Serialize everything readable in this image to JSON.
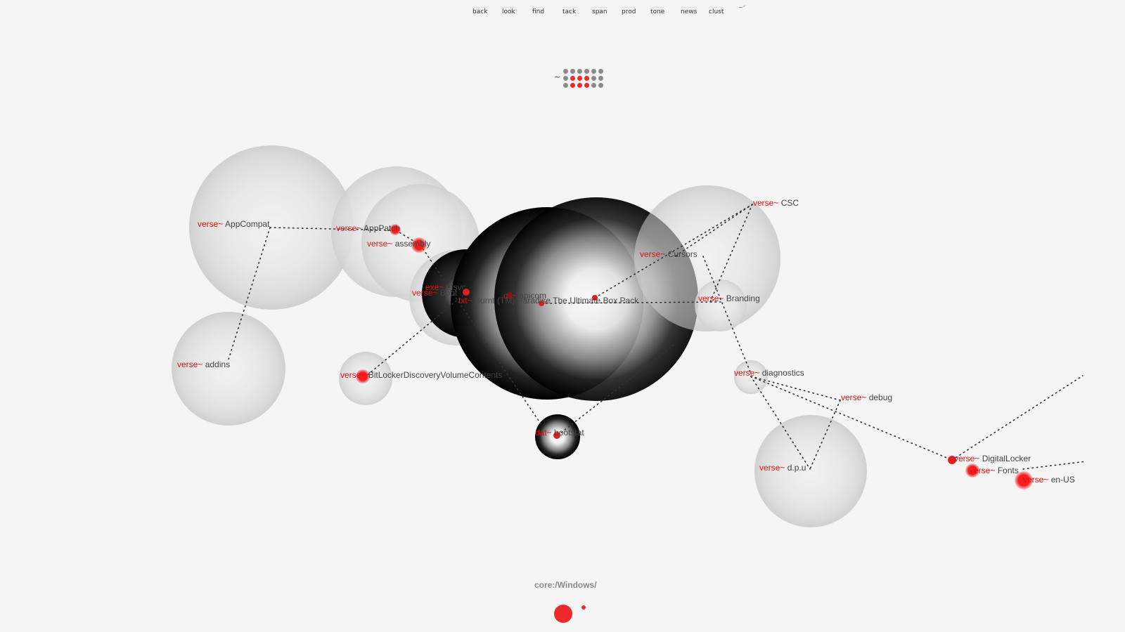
{
  "toolbar": {
    "tabs": [
      "back",
      "look",
      "find",
      "tack",
      "span",
      "prod",
      "tone",
      "news",
      "clust"
    ],
    "extra": "~ᐟ"
  },
  "tilde": "~",
  "dot_grid": {
    "rows": [
      [
        "gray",
        "gray",
        "gray",
        "gray",
        "gray",
        "gray"
      ],
      [
        "gray",
        "red",
        "red",
        "red",
        "gray",
        "gray"
      ],
      [
        "gray",
        "red",
        "red",
        "red",
        "gray",
        "gray"
      ]
    ]
  },
  "nodes": [
    {
      "prefix": "verse~",
      "name": "AppCompat"
    },
    {
      "prefix": "verse~",
      "name": "AppPatch"
    },
    {
      "prefix": "verse~",
      "name": "assembly"
    },
    {
      "prefix": "verse~",
      "name": "addins"
    },
    {
      "prefix": "verse~",
      "name": "BitLockerDiscoveryVolumeContents"
    },
    {
      "prefix": "verse~",
      "name": "Boot"
    },
    {
      "prefix": "exe~",
      "name": "bfsvc"
    },
    {
      "prefix": "txt~",
      "name": "Burnt (TM) Paradise The Ultimate Box Pack"
    },
    {
      "prefix": "dll~",
      "name": "apicom"
    },
    {
      "prefix": "dat~",
      "name": "bootstat"
    },
    {
      "prefix": "verse~",
      "name": "CSC"
    },
    {
      "prefix": "verse~",
      "name": "Cursors"
    },
    {
      "prefix": "verse~",
      "name": "Branding"
    },
    {
      "prefix": "verse~",
      "name": "diagnostics"
    },
    {
      "prefix": "verse~",
      "name": "debug"
    },
    {
      "prefix": "verse~",
      "name": "d.p.u"
    },
    {
      "prefix": "verse~",
      "name": "DigitalLocker"
    },
    {
      "prefix": "verse~",
      "name": "Fonts"
    },
    {
      "prefix": "verse~",
      "name": "en-US"
    }
  ],
  "path": "core:/Windows/",
  "colors": {
    "background": "#f5f5f5",
    "accent_red": "#e01010",
    "label_gray": "#444444",
    "link_dots": "#333333"
  }
}
